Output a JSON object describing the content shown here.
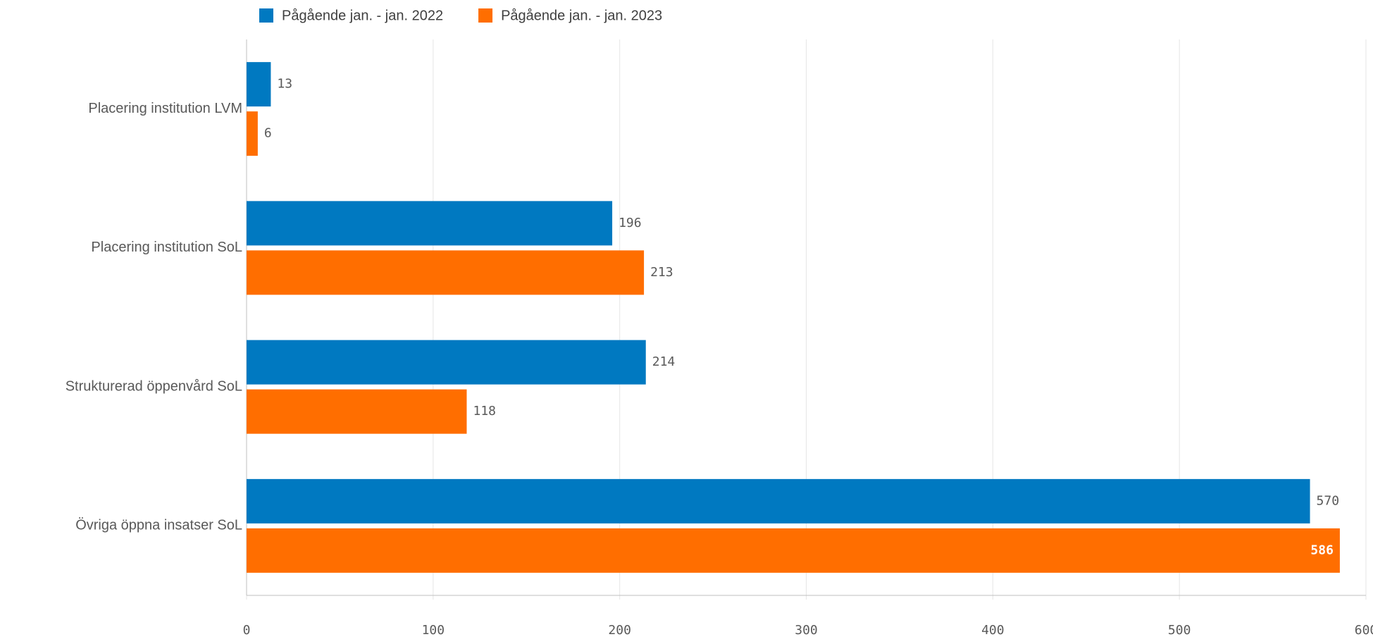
{
  "chart_data": {
    "type": "bar",
    "orientation": "horizontal",
    "categories": [
      "Placering institution LVM",
      "Placering institution SoL",
      "Strukturerad öppenvård SoL",
      "Övriga öppna insatser SoL"
    ],
    "series": [
      {
        "name": "Pågående jan. - jan. 2022",
        "color": "#0079c1",
        "values": [
          13,
          196,
          214,
          570
        ]
      },
      {
        "name": "Pågående jan. - jan. 2023",
        "color": "#ff6e00",
        "values": [
          6,
          213,
          118,
          586
        ]
      }
    ],
    "xlim": [
      0,
      600
    ],
    "xticks": [
      0,
      100,
      200,
      300,
      400,
      500,
      600
    ],
    "grid": true,
    "legend": "top-left"
  }
}
